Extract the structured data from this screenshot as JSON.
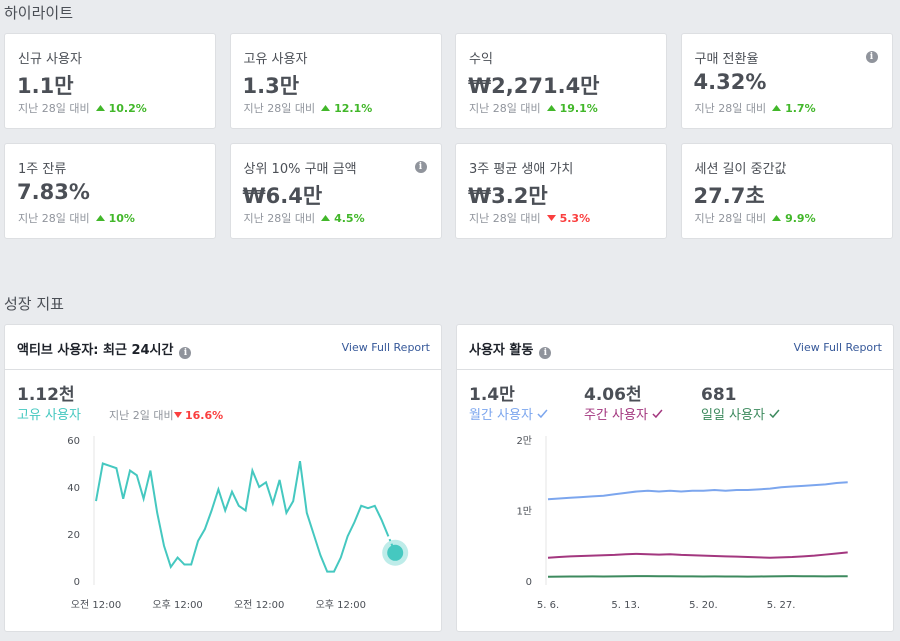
{
  "highlights": {
    "title": "하이라이트",
    "cards": [
      {
        "label": "신규 사용자",
        "value": "1.1만",
        "compare": "지난 28일 대비",
        "change": "10.2%",
        "direction": "up",
        "info": false
      },
      {
        "label": "고유 사용자",
        "value": "1.3만",
        "compare": "지난 28일 대비",
        "change": "12.1%",
        "direction": "up",
        "info": false
      },
      {
        "label": "수익",
        "value": "₩2,271.4만",
        "compare": "지난 28일 대비",
        "change": "19.1%",
        "direction": "up",
        "info": false
      },
      {
        "label": "구매 전환율",
        "value": "4.32%",
        "compare": "지난 28일 대비",
        "change": "1.7%",
        "direction": "up",
        "info": true
      },
      {
        "label": "1주 잔류",
        "value": "7.83%",
        "compare": "지난 28일 대비",
        "change": "10%",
        "direction": "up",
        "info": false
      },
      {
        "label": "상위 10% 구매 금액",
        "value": "₩6.4만",
        "compare": "지난 28일 대비",
        "change": "4.5%",
        "direction": "up",
        "info": true
      },
      {
        "label": "3주 평균 생애 가치",
        "value": "₩3.2만",
        "compare": "지난 28일 대비",
        "change": "5.3%",
        "direction": "down",
        "info": false
      },
      {
        "label": "세션 길이 중간값",
        "value": "27.7초",
        "compare": "지난 28일 대비",
        "change": "9.9%",
        "direction": "up",
        "info": false
      }
    ]
  },
  "growth": {
    "title": "성장 지표"
  },
  "chart_data": [
    {
      "type": "line",
      "title": "액티브 사용자: 최근 24시간",
      "link": "View Full Report",
      "info": true,
      "stats": [
        {
          "value": "1.12천",
          "compare": "지난 2일 대비",
          "change": "16.6%",
          "direction": "down"
        }
      ],
      "categories": [
        "오전 12:00",
        null,
        null,
        null,
        null,
        null,
        null,
        null,
        null,
        null,
        null,
        null,
        "오후 12:00",
        null,
        null,
        null,
        null,
        null,
        null,
        null,
        null,
        null,
        null,
        null,
        "오전 12:00",
        null,
        null,
        null,
        null,
        null,
        null,
        null,
        null,
        null,
        null,
        null,
        "오후 12:00",
        null,
        null,
        null,
        null,
        null,
        null,
        null,
        null
      ],
      "ylim": [
        0,
        60
      ],
      "yticks": [
        0,
        20,
        40,
        60
      ],
      "grid": false,
      "highlight_last": true,
      "series": [
        {
          "name": "고유 사용자",
          "color": "#45c8c0",
          "values": [
            34,
            50,
            49,
            48,
            35,
            47,
            45,
            35,
            47,
            29,
            15,
            6,
            10,
            7,
            7,
            17,
            22,
            30,
            39,
            30,
            38,
            32,
            30,
            47,
            40,
            42,
            33,
            43,
            29,
            34,
            51,
            29,
            20,
            11,
            4,
            4,
            10,
            19,
            25,
            32,
            31,
            32,
            26,
            19,
            12
          ]
        }
      ]
    },
    {
      "type": "line",
      "title": "사용자 활동",
      "link": "View Full Report",
      "info": true,
      "stats": [
        {
          "value": "1.4만"
        },
        {
          "value": "4.06천"
        },
        {
          "value": "681"
        }
      ],
      "categories": [
        "5. 6.",
        null,
        null,
        null,
        null,
        null,
        null,
        "5. 13.",
        null,
        null,
        null,
        null,
        null,
        null,
        "5. 20.",
        null,
        null,
        null,
        null,
        null,
        null,
        "5. 27.",
        null,
        null,
        null,
        null,
        null,
        null
      ],
      "ylim": [
        0,
        20000
      ],
      "yticks": [
        0,
        {
          "value": 10000,
          "label": "1만"
        },
        {
          "value": 20000,
          "label": "2만"
        }
      ],
      "grid": false,
      "highlight_last": false,
      "series": [
        {
          "name": "월간 사용자",
          "color": "#7ca6ee",
          "values": [
            11600,
            11700,
            11800,
            11900,
            12000,
            12100,
            12300,
            12500,
            12700,
            12800,
            12700,
            12800,
            12700,
            12800,
            12800,
            12900,
            12800,
            12900,
            12900,
            13000,
            13100,
            13300,
            13400,
            13500,
            13600,
            13700,
            13900,
            14000
          ]
        },
        {
          "name": "주간 사용자",
          "color": "#a3377f",
          "values": [
            3300,
            3400,
            3500,
            3550,
            3600,
            3650,
            3700,
            3800,
            3850,
            3800,
            3750,
            3800,
            3700,
            3650,
            3600,
            3550,
            3500,
            3450,
            3400,
            3350,
            3300,
            3350,
            3400,
            3500,
            3600,
            3750,
            3900,
            4060
          ]
        },
        {
          "name": "일일 사용자",
          "color": "#3d8a5e",
          "values": [
            600,
            620,
            630,
            640,
            650,
            640,
            650,
            680,
            700,
            690,
            680,
            670,
            660,
            650,
            640,
            650,
            640,
            630,
            620,
            640,
            660,
            680,
            690,
            680,
            670,
            660,
            670,
            681
          ]
        }
      ]
    }
  ]
}
